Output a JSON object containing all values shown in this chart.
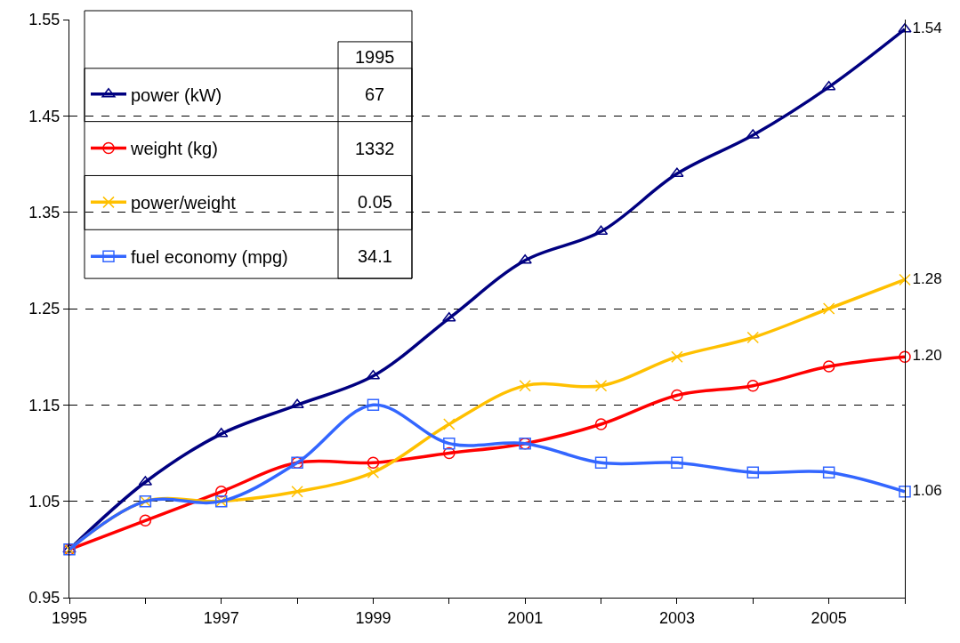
{
  "chart_data": {
    "type": "line",
    "x": [
      1995,
      1996,
      1997,
      1998,
      1999,
      2000,
      2001,
      2002,
      2003,
      2004,
      2005,
      2006
    ],
    "series": [
      {
        "name": "power (kW)",
        "color": "#000080",
        "marker": "triangle",
        "values": [
          1.0,
          1.07,
          1.12,
          1.15,
          1.18,
          1.24,
          1.3,
          1.33,
          1.39,
          1.43,
          1.48,
          1.54
        ],
        "value_labels": [
          null,
          null,
          null,
          null,
          null,
          null,
          null,
          null,
          null,
          null,
          null,
          "1.54"
        ]
      },
      {
        "name": "weight (kg)",
        "color": "#ff0000",
        "marker": "circle",
        "values": [
          1.0,
          1.03,
          1.06,
          1.09,
          1.09,
          1.1,
          1.11,
          1.13,
          1.16,
          1.17,
          1.19,
          1.2
        ],
        "value_labels": [
          null,
          null,
          null,
          null,
          null,
          null,
          null,
          null,
          null,
          null,
          null,
          "1.20"
        ]
      },
      {
        "name": "power/weight",
        "color": "#ffc000",
        "marker": "cross",
        "values": [
          1.0,
          1.05,
          1.05,
          1.06,
          1.08,
          1.13,
          1.17,
          1.17,
          1.2,
          1.22,
          1.25,
          1.28
        ],
        "value_labels": [
          null,
          null,
          null,
          null,
          null,
          null,
          null,
          null,
          null,
          null,
          null,
          "1.28"
        ]
      },
      {
        "name": "fuel economy (mpg)",
        "color": "#3366ff",
        "marker": "square",
        "values": [
          1.0,
          1.05,
          1.05,
          1.09,
          1.15,
          1.11,
          1.11,
          1.09,
          1.09,
          1.08,
          1.08,
          1.06
        ],
        "value_labels": [
          null,
          null,
          null,
          null,
          null,
          null,
          null,
          null,
          null,
          null,
          null,
          "1.06"
        ]
      }
    ],
    "annotations": [
      "1995",
      "67",
      "1332",
      "0.05",
      "34.1"
    ],
    "xlim": [
      1995,
      2006
    ],
    "xticks": [
      1995,
      {
        "value": 1996,
        "label": null
      },
      1997,
      {
        "value": 1998,
        "label": null
      },
      1999,
      {
        "value": 2000,
        "label": null
      },
      2001,
      {
        "value": 2002,
        "label": null
      },
      2003,
      {
        "value": 2004,
        "label": null
      },
      2005,
      {
        "value": 2006,
        "label": null
      }
    ],
    "ylim": [
      0.95,
      1.55
    ],
    "yticks": [
      0.95,
      1.05,
      1.15,
      1.25,
      1.35,
      1.45,
      1.55
    ],
    "grid": "y",
    "line_style": "solid",
    "legend": "top left"
  }
}
